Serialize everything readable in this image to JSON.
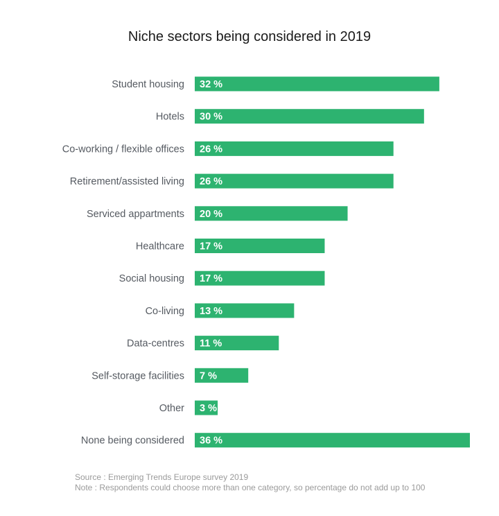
{
  "chart_data": {
    "type": "bar",
    "orientation": "horizontal",
    "title": "Niche sectors being considered in 2019",
    "categories": [
      "Student housing",
      "Hotels",
      "Co-working / flexible offices",
      "Retirement/assisted living",
      "Serviced appartments",
      "Healthcare",
      "Social housing",
      "Co-living",
      "Data-centres",
      "Self-storage facilities",
      "Other",
      "None being considered"
    ],
    "values": [
      32,
      30,
      26,
      26,
      20,
      17,
      17,
      13,
      11,
      7,
      3,
      36
    ],
    "value_labels": [
      "32 %",
      "30 %",
      "26 %",
      "26 %",
      "20 %",
      "17 %",
      "17 %",
      "13 %",
      "11 %",
      "7 %",
      "3 %",
      "36 %"
    ],
    "bar_color": "#2db370",
    "xlim": [
      0,
      36
    ],
    "grid": false,
    "legend": "none"
  },
  "footer": {
    "source": "Source : Emerging Trends Europe survey 2019",
    "note": "Note : Respondents could choose more than one category, so percentage do not add up to 100"
  }
}
